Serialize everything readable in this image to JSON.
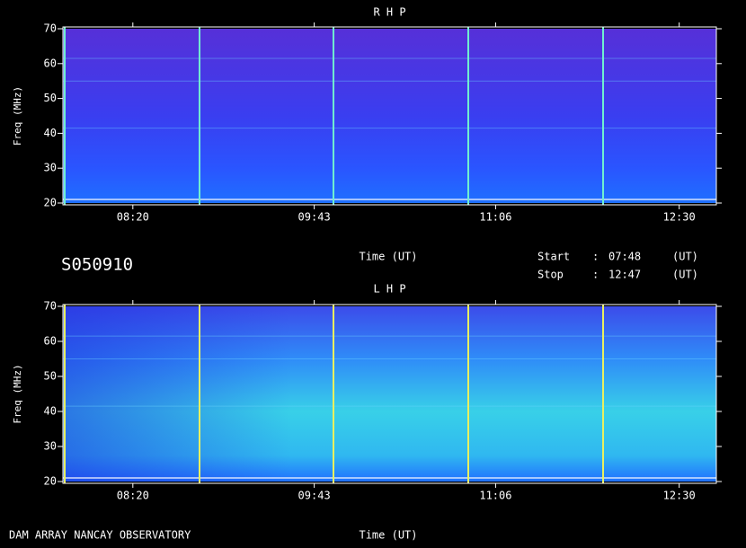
{
  "chart_data": [
    {
      "type": "spectrogram",
      "title": "R H P",
      "ylabel": "Freq (MHz)",
      "xlabel": "Time (UT)",
      "ylim": [
        20,
        70
      ],
      "yticks": [
        20,
        30,
        40,
        50,
        60,
        70
      ],
      "xlim": [
        468,
        767
      ],
      "xticks": [
        {
          "value": 500,
          "label": "08:20"
        },
        {
          "value": 583,
          "label": "09:43"
        },
        {
          "value": 666,
          "label": "11:06"
        },
        {
          "value": 750,
          "label": "12:30"
        }
      ]
    },
    {
      "type": "spectrogram",
      "title": "L H P",
      "ylabel": "Freq (MHz)",
      "xlabel": "Time (UT)",
      "ylim": [
        20,
        70
      ],
      "yticks": [
        20,
        30,
        40,
        50,
        60,
        70
      ],
      "xlim": [
        468,
        767
      ],
      "xticks": [
        {
          "value": 500,
          "label": "08:20"
        },
        {
          "value": 583,
          "label": "09:43"
        },
        {
          "value": 666,
          "label": "11:06"
        },
        {
          "value": 750,
          "label": "12:30"
        }
      ]
    }
  ],
  "header": {
    "id": "S050910",
    "start": {
      "label": "Start",
      "sep": ":",
      "time": "07:48",
      "unit": "(UT)"
    },
    "stop": {
      "label": "Stop",
      "sep": ":",
      "time": "12:47",
      "unit": "(UT)"
    }
  },
  "footer": "DAM ARRAY  NANCAY OBSERVATORY"
}
